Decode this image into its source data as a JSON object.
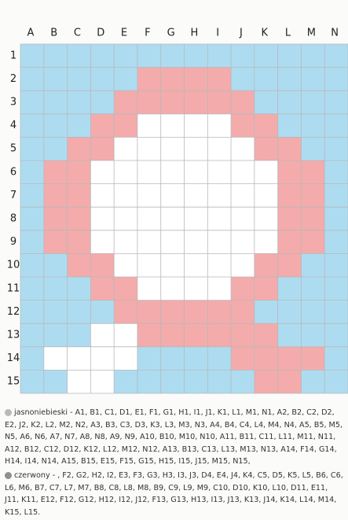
{
  "grid": {
    "columns": [
      "A",
      "B",
      "C",
      "D",
      "E",
      "F",
      "G",
      "H",
      "I",
      "J",
      "K",
      "L",
      "M",
      "N"
    ],
    "rows": [
      1,
      2,
      3,
      4,
      5,
      6,
      7,
      8,
      9,
      10,
      11,
      12,
      13,
      14,
      15
    ]
  },
  "legend": [
    {
      "text": "jasnoniebieski - A1, B1, C1, D1, E1, F1, G1, H1, I1, J1, K1, L1, M1, N1, A2, B2, C2, D2, E2, J2, K2, L2, M2, N2, A3, B3, C3, D3, K3, L3, M3, N3, A4, B4, C4, L4, M4, N4, A5, B5, M5, N5, A6, N6, A7, N7, A8, N8, A9, N9, A10, B10, M10, N10, A11, B11, C11, L11, M11, N11, A12, B12, C12, D12, K12, L12, M12, N12, A13, B13, C13, L13, M13, N13, A14, F14, G14, H14, I14, N14, A15, B15, E15, F15, G15, H15, I15, J15, M15, N15,"
    },
    {
      "text": "czerwony - , F2, G2, H2, I2, E3, F3, G3, H3, I3, J3, D4, E4, J4, K4, C5, D5, K5, L5, B6, C6, L6, M6, B7, C7, L7, M7, B8, C8, L8, M8, B9, C9, L9, M9, C10, D10, K10, L10, D11, E11, J11, K11, E12, F12, G12, H12, I12, J12, F13, G13, H13, I13, J13, K13, J14, K14, L14, M14, K15, L15."
    }
  ]
}
